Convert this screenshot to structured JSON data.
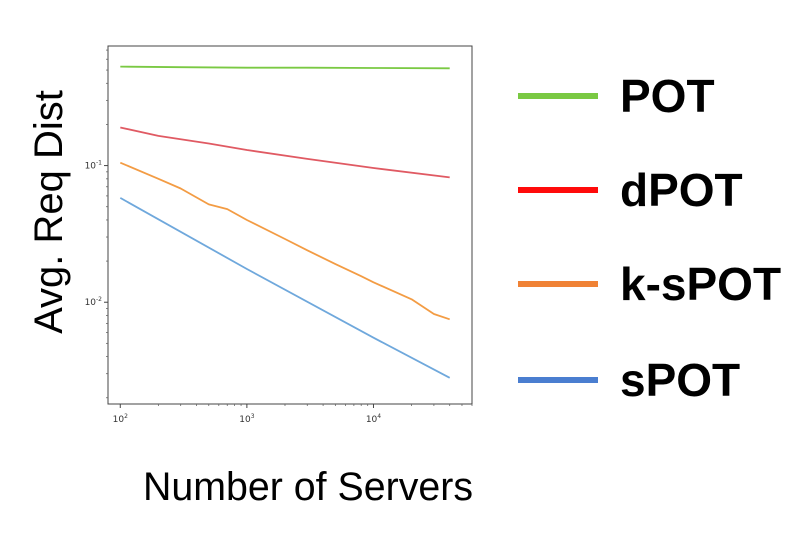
{
  "chart_data": {
    "type": "line",
    "title": "",
    "xlabel": "Number of Servers",
    "ylabel": "Avg. Req Dist",
    "xscale": "log",
    "yscale": "log",
    "xlim": [
      80,
      60000
    ],
    "ylim": [
      0.0018,
      0.75
    ],
    "grid": false,
    "legend_position": "right",
    "x_ticks": [
      {
        "base": "10",
        "exp": "2",
        "value": 100
      },
      {
        "base": "10",
        "exp": "3",
        "value": 1000
      },
      {
        "base": "10",
        "exp": "4",
        "value": 10000
      }
    ],
    "y_ticks": [
      {
        "base": "10",
        "exp": "-1",
        "value": 0.1
      },
      {
        "base": "10",
        "exp": "-2",
        "value": 0.01
      }
    ],
    "series": [
      {
        "name": "POT",
        "color": "#7ac943",
        "x": [
          100,
          300,
          1000,
          3000,
          10000,
          40000
        ],
        "y": [
          0.53,
          0.525,
          0.52,
          0.52,
          0.518,
          0.515
        ]
      },
      {
        "name": "dPOT",
        "color": "#e05a63",
        "x": [
          100,
          200,
          500,
          1000,
          3000,
          10000,
          40000
        ],
        "y": [
          0.19,
          0.165,
          0.145,
          0.13,
          0.112,
          0.096,
          0.082
        ]
      },
      {
        "name": "k-sPOT",
        "color": "#f39c44",
        "x": [
          100,
          200,
          300,
          500,
          700,
          1000,
          2000,
          3000,
          5000,
          8000,
          10000,
          20000,
          30000,
          40000
        ],
        "y": [
          0.105,
          0.08,
          0.068,
          0.052,
          0.048,
          0.04,
          0.029,
          0.024,
          0.019,
          0.0155,
          0.014,
          0.0105,
          0.0082,
          0.0075
        ]
      },
      {
        "name": "sPOT",
        "color": "#6fa8dc",
        "x": [
          100,
          1000,
          10000,
          40000
        ],
        "y": [
          0.058,
          0.0175,
          0.0055,
          0.0028
        ]
      }
    ],
    "legend": [
      {
        "label": "POT",
        "color": "#7ac943"
      },
      {
        "label": "dPOT",
        "color": "#ff0a0a"
      },
      {
        "label": "k-sPOT",
        "color": "#f08235"
      },
      {
        "label": "sPOT",
        "color": "#4a7ed0"
      }
    ]
  }
}
